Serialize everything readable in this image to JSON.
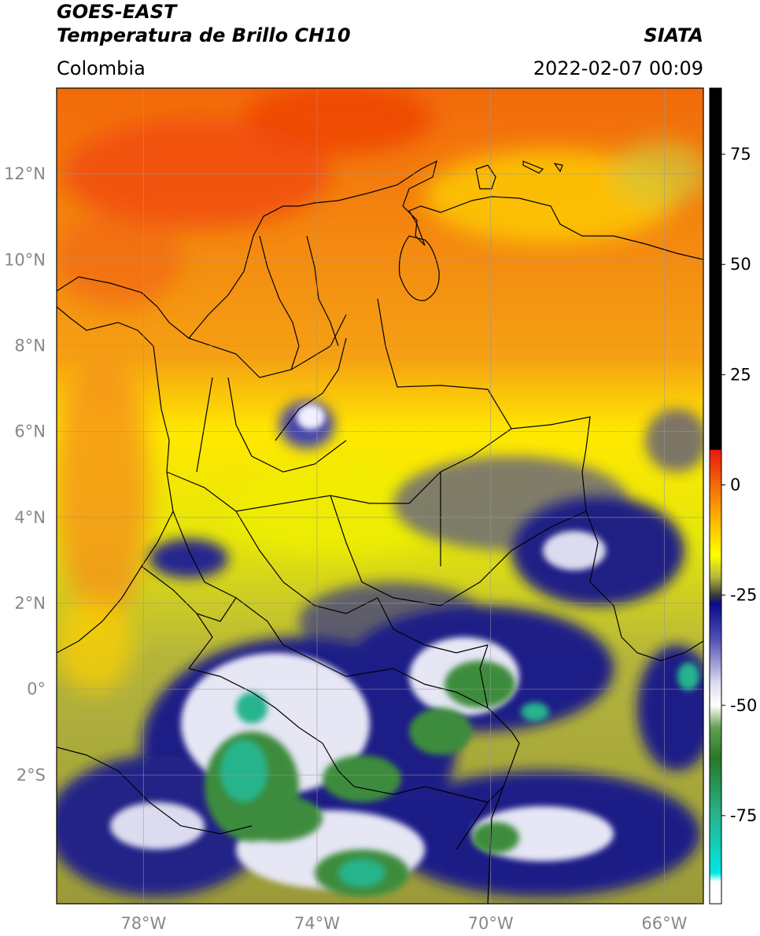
{
  "header": {
    "satellite": "GOES-EAST",
    "product": "Temperatura de Brillo CH10",
    "region": "Colombia",
    "organization": "SIATA",
    "datetime": "2022-02-07 00:09"
  },
  "map": {
    "lon_range": [
      -80,
      -65.1
    ],
    "lat_range": [
      -5,
      14
    ],
    "lon_ticks": [
      {
        "value": -78,
        "label": "78°W"
      },
      {
        "value": -74,
        "label": "74°W"
      },
      {
        "value": -70,
        "label": "70°W"
      },
      {
        "value": -66,
        "label": "66°W"
      }
    ],
    "lat_ticks": [
      {
        "value": 12,
        "label": "12°N"
      },
      {
        "value": 10,
        "label": "10°N"
      },
      {
        "value": 8,
        "label": "8°N"
      },
      {
        "value": 6,
        "label": "6°N"
      },
      {
        "value": 4,
        "label": "4°N"
      },
      {
        "value": 2,
        "label": "2°N"
      },
      {
        "value": 0,
        "label": "0°"
      },
      {
        "value": -2,
        "label": "2°S"
      }
    ],
    "gridlines": true
  },
  "colorbar": {
    "range": [
      -95,
      90
    ],
    "ticks": [
      {
        "value": 75,
        "label": "75"
      },
      {
        "value": 50,
        "label": "50"
      },
      {
        "value": 25,
        "label": "25"
      },
      {
        "value": 0,
        "label": "0"
      },
      {
        "value": -25,
        "label": "-25"
      },
      {
        "value": -50,
        "label": "-50"
      },
      {
        "value": -75,
        "label": "-75"
      }
    ],
    "stops": [
      {
        "value": 90,
        "color": "#000000"
      },
      {
        "value": 8,
        "color": "#000000"
      },
      {
        "value": 7.9,
        "color": "#e8190a"
      },
      {
        "value": 0,
        "color": "#f26a0a"
      },
      {
        "value": -10,
        "color": "#ffc800"
      },
      {
        "value": -16,
        "color": "#ffff00"
      },
      {
        "value": -21,
        "color": "#b4b43c"
      },
      {
        "value": -25,
        "color": "#3c3c3c"
      },
      {
        "value": -27,
        "color": "#0a0a8c"
      },
      {
        "value": -35,
        "color": "#5050b4"
      },
      {
        "value": -45,
        "color": "#dcdcf0"
      },
      {
        "value": -50,
        "color": "#ffffff"
      },
      {
        "value": -55,
        "color": "#64a050"
      },
      {
        "value": -62,
        "color": "#287828"
      },
      {
        "value": -75,
        "color": "#28b48c"
      },
      {
        "value": -88,
        "color": "#00e6e6"
      },
      {
        "value": -90,
        "color": "#ffffff"
      },
      {
        "value": -95,
        "color": "#ffffff"
      }
    ]
  },
  "colors": {
    "warm_sea": "#f5821e",
    "hot_core": "#f04a0a",
    "land_yellow": "#ffe800",
    "olive": "#a8a83c",
    "deep_blue": "#14148c",
    "cloud_white": "#f0f0f8",
    "cold_green": "#3c8c3c",
    "cold_cyan": "#3cb48c",
    "outline": "#000000"
  }
}
